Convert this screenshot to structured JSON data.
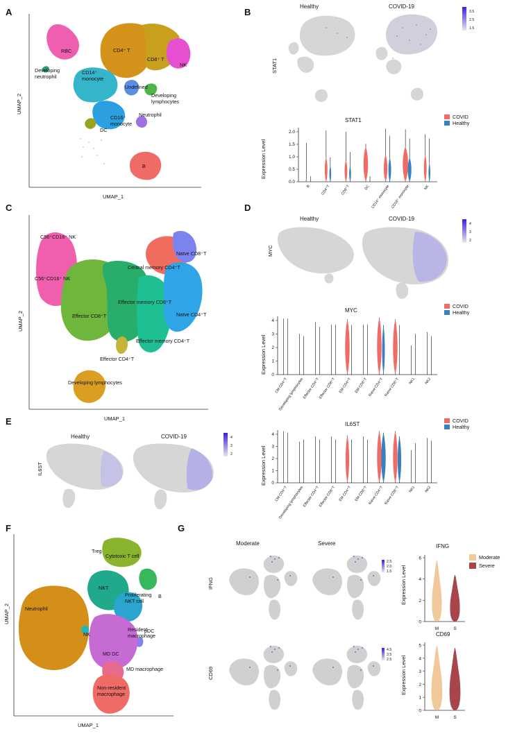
{
  "colors": {
    "covid": "#ee6b66",
    "healthy": "#3a7fbf",
    "moderate": "#f1c89a",
    "severe": "#a8454a",
    "feature_low": "#d9d9d9",
    "feature_high": "#3b20d8"
  },
  "panels": {
    "A": {
      "label": "A",
      "xlabel": "UMAP_1",
      "ylabel": "UMAP_2",
      "clusters": [
        {
          "name": "RBC",
          "color": "#ef5fb0"
        },
        {
          "name": "Developing neutrophil",
          "color": "#2f9a7a"
        },
        {
          "name": "CD4⁺ T",
          "color": "#d4921a"
        },
        {
          "name": "CD8⁺ T",
          "color": "#c8a01e"
        },
        {
          "name": "NK",
          "color": "#e74fd1"
        },
        {
          "name": "CD14⁺ monocyte",
          "color": "#35b5c9"
        },
        {
          "name": "Undefined",
          "color": "#5b8de3"
        },
        {
          "name": "Developing lymphocytes",
          "color": "#4fb548"
        },
        {
          "name": "CD16⁺ monocyte",
          "color": "#2b9fe0"
        },
        {
          "name": "Neutrophil",
          "color": "#9b73e0"
        },
        {
          "name": "DC",
          "color": "#9aa31d"
        },
        {
          "name": "B",
          "color": "#ee6b66"
        }
      ]
    },
    "B": {
      "label": "B",
      "gene": "STAT1",
      "conditions": [
        "Healthy",
        "COVID-19"
      ],
      "scale": [
        "3.5",
        "2.5",
        "1.5"
      ],
      "violin_title": "STAT1",
      "ylabel": "Expression Level",
      "yticks": [
        "0.0",
        "0.5",
        "1.0",
        "1.5",
        "2.0"
      ],
      "groups": [
        "B",
        "CD4⁺T",
        "CD8⁺T",
        "DC",
        "CD14⁺ monocyte",
        "CD16⁺ monocyte",
        "NK"
      ],
      "legend": [
        "COVID",
        "Healthy"
      ]
    },
    "C": {
      "label": "C",
      "xlabel": "UMAP_1",
      "ylabel": "UMAP_2",
      "clusters": [
        {
          "name": "C56⁺CD16⁺ NK",
          "color": "#f05fb2"
        },
        {
          "name": "C56⁺CD16⁺ NK",
          "color": "#e75aa6"
        },
        {
          "name": "Central memory CD4⁺T",
          "color": "#ef6c5f"
        },
        {
          "name": "Naïve CD8⁺T",
          "color": "#7d83ee"
        },
        {
          "name": "Effector memory CD8⁺T",
          "color": "#2fb06b"
        },
        {
          "name": "Effector CD8⁺T",
          "color": "#6fb63c"
        },
        {
          "name": "Naïve CD4⁺T",
          "color": "#2fa5e8"
        },
        {
          "name": "Effector memory CD4⁺T",
          "color": "#1dbf93"
        },
        {
          "name": "Effector CD4⁺T",
          "color": "#c4b43a"
        },
        {
          "name": "Developing lymphocytes",
          "color": "#d99e22"
        }
      ]
    },
    "D": {
      "label": "D",
      "gene": "MYC",
      "conditions": [
        "Healthy",
        "COVID-19"
      ],
      "scale": [
        "4",
        "3",
        "2"
      ],
      "violin_title": "MYC",
      "ylabel": "Expression Level",
      "yticks": [
        "0",
        "1",
        "2",
        "3",
        "4"
      ],
      "groups": [
        "CM CD4⁺T",
        "Developing lymphocytes",
        "Effector CD4⁺T",
        "Effector CD8⁺T",
        "EM CD4⁺T",
        "EM CD8⁺T",
        "Naïve CD4⁺T",
        "Naïve CD8⁺T",
        "NK1",
        "NK2"
      ],
      "legend": [
        "COVID",
        "Healthy"
      ]
    },
    "E": {
      "label": "E",
      "gene": "IL6ST",
      "conditions": [
        "Healthy",
        "COVID-19"
      ],
      "scale": [
        "4",
        "3",
        "2"
      ],
      "violin_title": "IL6ST",
      "ylabel": "Expression Level",
      "yticks": [
        "0",
        "1",
        "2",
        "3",
        "4"
      ],
      "groups": [
        "CM CD4⁺T",
        "Developing lymphocytes",
        "Effector CD4⁺T",
        "Effector CD8⁺T",
        "EM CD4⁺T",
        "EM CD8⁺T",
        "Naïve CD4⁺T",
        "Naïve CD8⁺T",
        "NK1",
        "NK2"
      ],
      "legend": [
        "COVID",
        "Healthy"
      ]
    },
    "F": {
      "label": "F",
      "xlabel": "UMAP_1",
      "ylabel": "UMAP_2",
      "clusters": [
        {
          "name": "Treg",
          "color": "#a9a51f"
        },
        {
          "name": "Cytotoxic T cell",
          "color": "#6cae3e"
        },
        {
          "name": "B",
          "color": "#38b75c"
        },
        {
          "name": "NKT",
          "color": "#20a98a"
        },
        {
          "name": "Proliferating NKT cell",
          "color": "#2aa5cf"
        },
        {
          "name": "Neutrophil",
          "color": "#d48f18"
        },
        {
          "name": "NK",
          "color": "#1fb5c4"
        },
        {
          "name": "pDC",
          "color": "#7f83ea"
        },
        {
          "name": "Resident macrophage",
          "color": "#b56ee0"
        },
        {
          "name": "MD DC",
          "color": "#d869c4"
        },
        {
          "name": "MD macrophage",
          "color": "#e66b8e"
        },
        {
          "name": "Non-resident macrophage",
          "color": "#ee6b66"
        }
      ]
    },
    "G": {
      "label": "G",
      "conditions": [
        "Moderate",
        "Severe"
      ],
      "genes": [
        "IFNG",
        "CD69"
      ],
      "scales": [
        [
          "2.5",
          "2.0",
          "1.5"
        ],
        [
          "4.5",
          "3.5",
          "2.5"
        ]
      ],
      "violins": [
        {
          "title": "IFNG",
          "yticks": [
            "0",
            "2",
            "4",
            "6"
          ],
          "groups": [
            "M",
            "S"
          ]
        },
        {
          "title": "CD69",
          "yticks": [
            "0",
            "1",
            "2",
            "3",
            "4",
            "5"
          ],
          "groups": [
            "M",
            "S"
          ]
        }
      ],
      "ylabel": "Expression Level",
      "legend": [
        "Moderate",
        "Severe"
      ]
    }
  }
}
